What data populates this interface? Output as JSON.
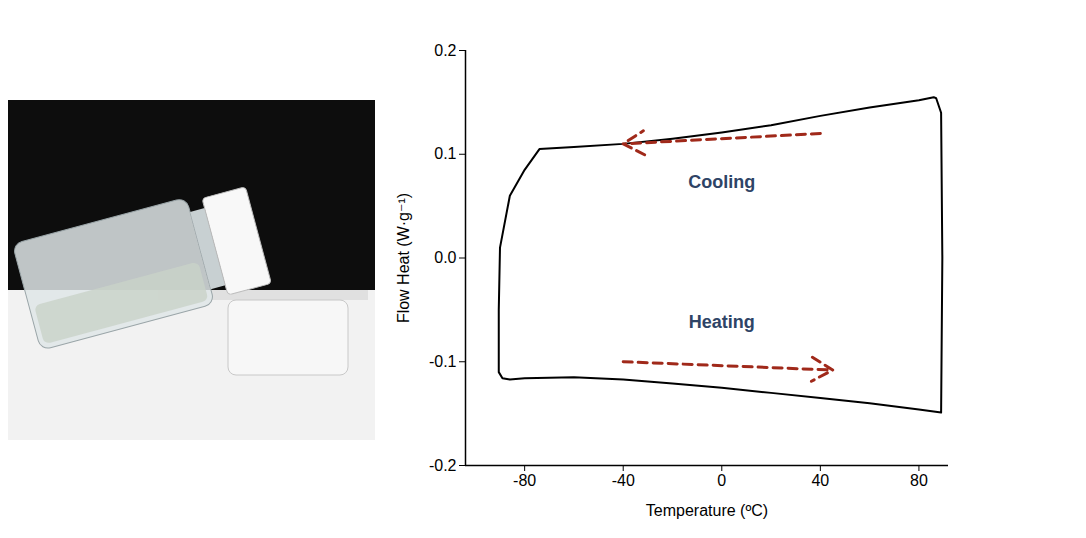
{
  "chart_data": {
    "type": "line",
    "x_label": "Temperature (ºC)",
    "y_label": "Flow Heat (W·g⁻¹)",
    "xlim": [
      -104,
      92
    ],
    "ylim": [
      -0.2,
      0.2
    ],
    "xticks": [
      -80,
      -40,
      0,
      40,
      80
    ],
    "yticks": [
      -0.2,
      -0.1,
      {
        "value": 0,
        "label": "0.0"
      },
      0.1,
      0.2
    ],
    "color": "#000000",
    "x": [
      86,
      80,
      60,
      40,
      20,
      0,
      -20,
      -40,
      -60,
      -74,
      -80,
      -86,
      -90,
      -90.5,
      -90.5,
      -89,
      -86,
      -80,
      -60,
      -40,
      -20,
      0,
      20,
      40,
      60,
      80,
      89,
      89.5,
      89,
      87,
      86
    ],
    "values": [
      0.155,
      0.152,
      0.145,
      0.137,
      0.128,
      0.121,
      0.115,
      0.11,
      0.107,
      0.105,
      0.085,
      0.06,
      0.01,
      -0.05,
      -0.11,
      -0.116,
      -0.117,
      -0.116,
      -0.115,
      -0.117,
      -0.121,
      -0.125,
      -0.13,
      -0.135,
      -0.14,
      -0.146,
      -0.149,
      0.0,
      0.14,
      0.154,
      0.155
    ],
    "annotations": [
      {
        "text": "Cooling",
        "x": 0,
        "y": 0.073,
        "color": "#2e4466",
        "arrow": [
          40,
          0.12,
          -40,
          0.11
        ],
        "arrow_color": "#a0291a"
      },
      {
        "text": "Heating",
        "x": 0,
        "y": -0.062,
        "color": "#2e4466",
        "arrow": [
          -40,
          -0.1,
          45,
          -0.108
        ],
        "arrow_color": "#a0291a"
      }
    ]
  }
}
